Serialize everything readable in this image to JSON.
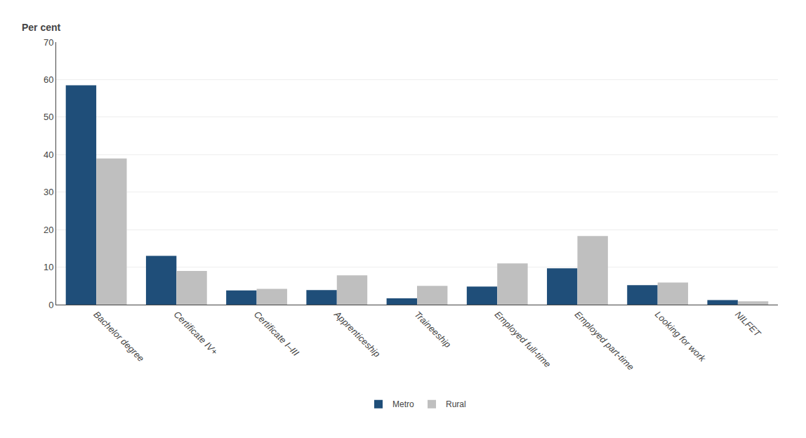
{
  "chart_data": {
    "type": "bar",
    "ylabel": "Per cent",
    "categories": [
      "Bachelor degree",
      "Certificate IV+",
      "Certificate I–III",
      "Apprenticeship",
      "Traineeship",
      "Employed full-time",
      "Employed part-time",
      "Looking for work",
      "NILFET"
    ],
    "series": [
      {
        "name": "Metro",
        "color": "#1f4e79",
        "values": [
          58.5,
          13.0,
          3.8,
          3.9,
          1.7,
          4.8,
          9.7,
          5.2,
          1.2
        ]
      },
      {
        "name": "Rural",
        "color": "#bfbfbf",
        "values": [
          39.0,
          9.0,
          4.2,
          7.8,
          5.0,
          11.0,
          18.3,
          5.9,
          0.9
        ]
      }
    ],
    "ylim": [
      0,
      70
    ],
    "yticks": [
      0,
      10,
      20,
      30,
      40,
      50,
      60,
      70
    ],
    "grid": true,
    "legend": "bottom"
  }
}
